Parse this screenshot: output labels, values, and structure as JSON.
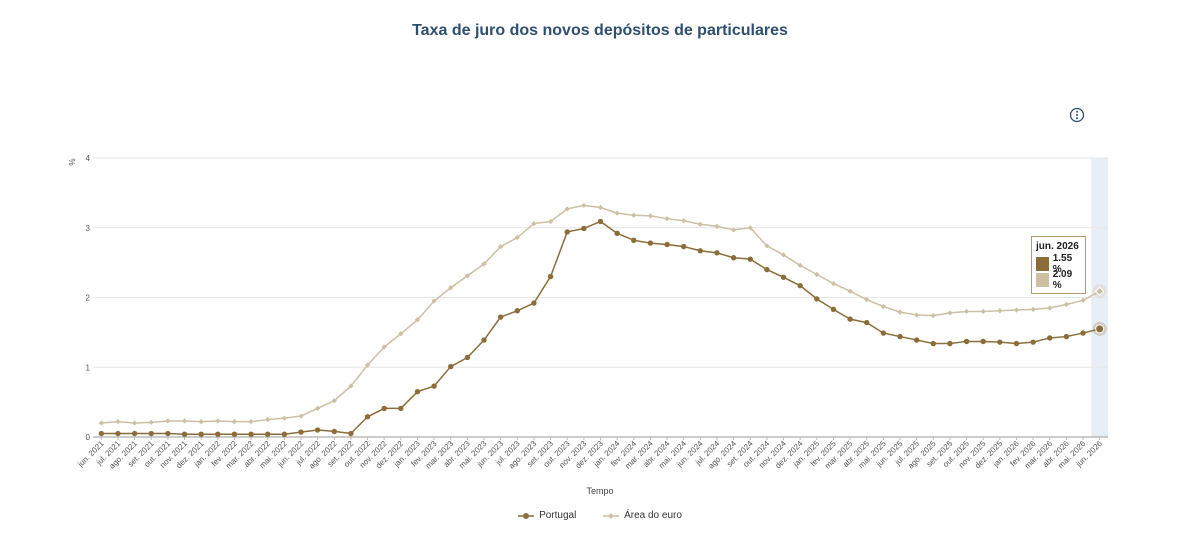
{
  "title": "Taxa de juro dos novos depósitos de particulares",
  "info_icon": "info-icon",
  "colors": {
    "portugal": "#8b6d3a",
    "euro": "#cdbfa3",
    "hover_band": "#e8eef5",
    "grid": "#e6e6e6"
  },
  "tooltip": {
    "title": "jun. 2026",
    "rows": [
      {
        "value": "1.55 %",
        "color": "#8b6d3a"
      },
      {
        "value": "2.09 %",
        "color": "#cdbfa3"
      }
    ]
  },
  "legend": [
    {
      "label": "Portugal",
      "color": "#8b6d3a"
    },
    {
      "label": "Área do euro",
      "color": "#cdbfa3"
    }
  ],
  "chart_data": {
    "type": "line",
    "title": "Taxa de juro dos novos depósitos de particulares",
    "xlabel": "Tempo",
    "ylabel": "%",
    "ylim": [
      0,
      4
    ],
    "yticks": [
      "0",
      "1",
      "2",
      "3",
      "4"
    ],
    "grid": true,
    "legend_position": "bottom",
    "highlight": "jun. 2026",
    "categories": [
      "jun. 2021",
      "jul. 2021",
      "ago. 2021",
      "set. 2021",
      "out. 2021",
      "nov. 2021",
      "dez. 2021",
      "jan. 2022",
      "fev. 2022",
      "mar. 2022",
      "abr. 2022",
      "mai. 2022",
      "jun. 2022",
      "jul. 2022",
      "ago. 2022",
      "set. 2022",
      "out. 2022",
      "nov. 2022",
      "dez. 2022",
      "jan. 2023",
      "fev. 2023",
      "mar. 2023",
      "abr. 2023",
      "mai. 2023",
      "jun. 2023",
      "jul. 2023",
      "ago. 2023",
      "set. 2023",
      "out. 2023",
      "nov. 2023",
      "dez. 2023",
      "jan. 2024",
      "fev. 2024",
      "mar. 2024",
      "abr. 2024",
      "mai. 2024",
      "jun. 2024",
      "jul. 2024",
      "ago. 2024",
      "set. 2024",
      "out. 2024",
      "nov. 2024",
      "dez. 2024",
      "jan. 2025",
      "fev. 2025",
      "mar. 2025",
      "abr. 2025",
      "mai. 2025",
      "jun. 2025",
      "jul. 2025",
      "ago. 2025",
      "set. 2025",
      "out. 2025",
      "nov. 2025",
      "dez. 2025",
      "jan. 2026",
      "fev. 2026",
      "mar. 2026",
      "abr. 2026",
      "mai. 2026",
      "jun. 2026"
    ],
    "series": [
      {
        "name": "Portugal",
        "values": [
          0.05,
          0.05,
          0.05,
          0.05,
          0.05,
          0.04,
          0.04,
          0.04,
          0.04,
          0.04,
          0.04,
          0.04,
          0.07,
          0.1,
          0.08,
          0.05,
          0.29,
          0.41,
          0.41,
          0.65,
          0.73,
          1.01,
          1.14,
          1.39,
          1.72,
          1.81,
          1.92,
          2.3,
          2.94,
          2.99,
          3.09,
          2.92,
          2.82,
          2.78,
          2.76,
          2.73,
          2.67,
          2.64,
          2.57,
          2.55,
          2.4,
          2.29,
          2.17,
          1.98,
          1.83,
          1.69,
          1.64,
          1.49,
          1.44,
          1.39,
          1.34,
          1.34,
          1.37,
          1.37,
          1.36,
          1.34,
          1.36,
          1.42,
          1.44,
          1.49,
          1.55
        ]
      },
      {
        "name": "Área do euro",
        "values": [
          0.2,
          0.22,
          0.2,
          0.21,
          0.23,
          0.23,
          0.22,
          0.23,
          0.22,
          0.22,
          0.25,
          0.27,
          0.3,
          0.41,
          0.52,
          0.73,
          1.03,
          1.29,
          1.48,
          1.68,
          1.95,
          2.14,
          2.31,
          2.48,
          2.73,
          2.86,
          3.06,
          3.09,
          3.27,
          3.32,
          3.29,
          3.21,
          3.18,
          3.17,
          3.13,
          3.1,
          3.05,
          3.02,
          2.97,
          3.0,
          2.74,
          2.61,
          2.46,
          2.33,
          2.2,
          2.09,
          1.97,
          1.87,
          1.79,
          1.75,
          1.74,
          1.78,
          1.8,
          1.8,
          1.81,
          1.82,
          1.83,
          1.85,
          1.9,
          1.96,
          2.09
        ]
      }
    ]
  }
}
